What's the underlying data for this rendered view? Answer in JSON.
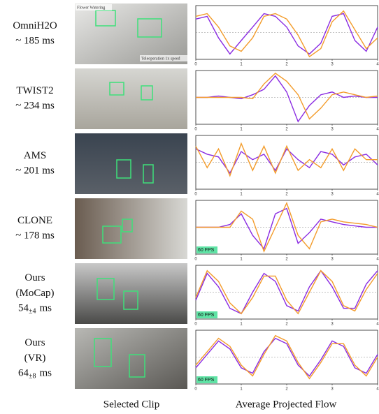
{
  "rows": [
    {
      "name": [
        "OmniH2O"
      ],
      "latency": [
        "~ 185 ms"
      ],
      "clip_text": [
        "Flower Watering",
        "Teleoperation 1x speed"
      ]
    },
    {
      "name": [
        "TWIST2"
      ],
      "latency": [
        "~ 234 ms"
      ]
    },
    {
      "name": [
        "AMS"
      ],
      "latency": [
        "~ 201 ms"
      ]
    },
    {
      "name": [
        "CLONE"
      ],
      "latency": [
        "~ 178 ms"
      ]
    },
    {
      "name": [
        "Ours",
        "(MoCap)"
      ],
      "latency": [
        "54",
        "±4",
        "ms"
      ]
    },
    {
      "name": [
        "Ours",
        "(VR)"
      ],
      "latency": [
        "64",
        "±8",
        "ms"
      ]
    }
  ],
  "captions": {
    "clip": "Selected Clip",
    "flow": "Average Projected Flow"
  },
  "chart_data": [
    {
      "type": "line",
      "x": [
        0,
        0.25,
        0.5,
        0.75,
        1,
        1.25,
        1.5,
        1.75,
        2,
        2.25,
        2.5,
        2.75,
        3,
        3.25,
        3.5,
        3.75,
        4
      ],
      "xlim": [
        0,
        4
      ],
      "xticks": [
        0,
        1,
        2,
        3,
        4
      ],
      "ylim": [
        -1,
        1
      ],
      "hline": 0,
      "series": [
        {
          "color": "#8a2be2",
          "values": [
            0.5,
            0.6,
            -0.2,
            -0.8,
            -0.3,
            0.2,
            0.7,
            0.6,
            0.2,
            -0.5,
            -0.8,
            -0.4,
            0.6,
            0.7,
            -0.3,
            -0.7,
            0.2
          ]
        },
        {
          "color": "#f39c2b",
          "values": [
            0.6,
            0.7,
            0.2,
            -0.5,
            -0.7,
            -0.2,
            0.6,
            0.7,
            0.5,
            -0.1,
            -0.9,
            -0.6,
            0.4,
            0.8,
            0.1,
            -0.6,
            -0.2
          ]
        }
      ]
    },
    {
      "type": "line",
      "x": [
        0,
        0.25,
        0.5,
        0.75,
        1,
        1.25,
        1.5,
        1.75,
        2,
        2.25,
        2.5,
        2.75,
        3,
        3.25,
        3.5,
        3.75,
        4
      ],
      "xlim": [
        0,
        4
      ],
      "xticks": [
        0,
        1,
        2,
        3,
        4
      ],
      "ylim": [
        -1,
        1
      ],
      "hline": 0,
      "series": [
        {
          "color": "#8a2be2",
          "values": [
            0,
            0,
            0.05,
            0,
            -0.05,
            0.1,
            0.3,
            0.8,
            0.2,
            -0.9,
            -0.3,
            0.1,
            0.2,
            0,
            0.05,
            0,
            0
          ]
        },
        {
          "color": "#f39c2b",
          "values": [
            0,
            0,
            0,
            0,
            0,
            -0.05,
            0.5,
            0.9,
            0.6,
            0.1,
            -0.8,
            -0.4,
            0.1,
            0.2,
            0.1,
            0,
            0.05
          ]
        }
      ]
    },
    {
      "type": "line",
      "x": [
        0,
        0.25,
        0.5,
        0.75,
        1,
        1.25,
        1.5,
        1.75,
        2,
        2.25,
        2.5,
        2.75,
        3,
        3.25,
        3.5,
        3.75,
        4
      ],
      "xlim": [
        0,
        4
      ],
      "xticks": [
        0,
        1,
        2,
        3,
        4
      ],
      "ylim": [
        -1,
        1
      ],
      "hline": 0,
      "series": [
        {
          "color": "#8a2be2",
          "values": [
            0.5,
            0.3,
            0.2,
            -0.4,
            0.4,
            0.1,
            0.3,
            -0.3,
            0.5,
            0.1,
            -0.2,
            0.4,
            0.3,
            -0.1,
            0.2,
            0.3,
            -0.1
          ]
        },
        {
          "color": "#f39c2b",
          "values": [
            0.6,
            -0.2,
            0.5,
            -0.5,
            0.7,
            -0.3,
            0.6,
            -0.4,
            0.6,
            -0.3,
            0.1,
            -0.2,
            0.5,
            -0.3,
            0.5,
            0.1,
            0.1
          ]
        }
      ]
    },
    {
      "type": "line",
      "x": [
        0,
        0.25,
        0.5,
        0.75,
        1,
        1.25,
        1.5,
        1.75,
        2,
        2.25,
        2.5,
        2.75,
        3,
        3.25,
        3.5,
        3.75,
        4
      ],
      "xlim": [
        0,
        4
      ],
      "xticks": [
        0,
        1,
        2,
        3,
        4
      ],
      "ylim": [
        -1,
        1
      ],
      "hline": 0,
      "annotation": "60 FPS",
      "series": [
        {
          "color": "#8a2be2",
          "values": [
            0,
            0,
            0,
            0.1,
            0.5,
            -0.3,
            -0.8,
            0.5,
            0.7,
            -0.6,
            -0.2,
            0.3,
            0.2,
            0.1,
            0.05,
            0,
            0
          ]
        },
        {
          "color": "#f39c2b",
          "values": [
            0,
            0,
            0,
            0,
            0.6,
            0.3,
            -0.9,
            0,
            0.9,
            -0.3,
            -0.8,
            0.2,
            0.3,
            0.2,
            0.15,
            0.1,
            0
          ]
        }
      ]
    },
    {
      "type": "line",
      "x": [
        0,
        0.25,
        0.5,
        0.75,
        1,
        1.25,
        1.5,
        1.75,
        2,
        2.25,
        2.5,
        2.75,
        3,
        3.25,
        3.5,
        3.75,
        4
      ],
      "xlim": [
        0,
        4
      ],
      "xticks": [
        0,
        1,
        2,
        3,
        4
      ],
      "ylim": [
        -1,
        1
      ],
      "hline": 0,
      "annotation": "60 FPS",
      "series": [
        {
          "color": "#8a2be2",
          "values": [
            -0.3,
            0.7,
            0.2,
            -0.6,
            -0.8,
            0,
            0.7,
            0.4,
            -0.5,
            -0.7,
            0.2,
            0.8,
            0.2,
            -0.6,
            -0.6,
            0.3,
            0.8
          ]
        },
        {
          "color": "#f39c2b",
          "values": [
            -0.2,
            0.8,
            0.4,
            -0.4,
            -0.8,
            -0.2,
            0.6,
            0.6,
            -0.3,
            -0.8,
            0,
            0.8,
            0.4,
            -0.5,
            -0.7,
            0.1,
            0.7
          ]
        }
      ]
    },
    {
      "type": "line",
      "x": [
        0,
        0.25,
        0.5,
        0.75,
        1,
        1.25,
        1.5,
        1.75,
        2,
        2.25,
        2.5,
        2.75,
        3,
        3.25,
        3.5,
        3.75,
        4
      ],
      "xlim": [
        0,
        4
      ],
      "xticks": [
        0,
        1,
        2,
        3,
        4
      ],
      "ylim": [
        -1,
        1
      ],
      "hline": 0,
      "annotation": "60 FPS",
      "series": [
        {
          "color": "#8a2be2",
          "values": [
            -0.4,
            0.1,
            0.6,
            0.3,
            -0.4,
            -0.6,
            0.2,
            0.7,
            0.5,
            -0.3,
            -0.7,
            -0.1,
            0.6,
            0.4,
            -0.4,
            -0.6,
            0.1
          ]
        },
        {
          "color": "#f39c2b",
          "values": [
            -0.3,
            0.2,
            0.7,
            0.4,
            -0.3,
            -0.7,
            0.1,
            0.8,
            0.6,
            -0.2,
            -0.8,
            -0.2,
            0.5,
            0.5,
            -0.3,
            -0.7,
            0
          ]
        }
      ]
    }
  ]
}
